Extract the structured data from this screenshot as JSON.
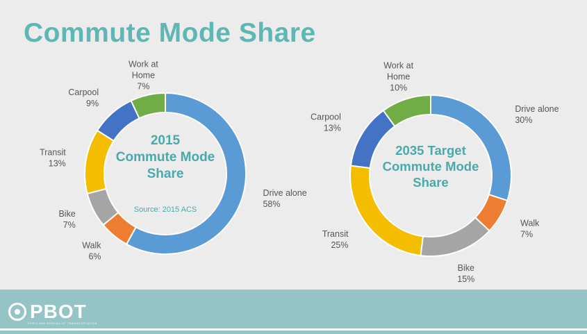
{
  "slide": {
    "title": "Commute Mode Share"
  },
  "footer": {
    "logo_text": "PBOT",
    "logo_subtext": "PORTLAND BUREAU OF TRANSPORTATION"
  },
  "chart_data": [
    {
      "type": "pie",
      "variant": "donut",
      "title_lines": [
        "2015",
        "Commute Mode",
        "Share"
      ],
      "source": "Source: 2015 ACS",
      "slices": [
        {
          "label": "Drive alone",
          "value": 58,
          "value_label": "58%",
          "color": "#5b9bd5"
        },
        {
          "label": "Walk",
          "value": 6,
          "value_label": "6%",
          "color": "#ed7d31"
        },
        {
          "label": "Bike",
          "value": 7,
          "value_label": "7%",
          "color": "#a5a5a5"
        },
        {
          "label": "Transit",
          "value": 13,
          "value_label": "13%",
          "color": "#f5bd00"
        },
        {
          "label": "Carpool",
          "value": 9,
          "value_label": "9%",
          "color": "#4472c4"
        },
        {
          "label": "Work at Home",
          "value": 7,
          "value_label": "7%",
          "color": "#70ad47"
        }
      ]
    },
    {
      "type": "pie",
      "variant": "donut",
      "title_lines": [
        "2035 Target",
        "Commute Mode",
        "Share"
      ],
      "slices": [
        {
          "label": "Drive alone",
          "value": 30,
          "value_label": "30%",
          "color": "#5b9bd5"
        },
        {
          "label": "Walk",
          "value": 7,
          "value_label": "7%",
          "color": "#ed7d31"
        },
        {
          "label": "Bike",
          "value": 15,
          "value_label": "15%",
          "color": "#a5a5a5"
        },
        {
          "label": "Transit",
          "value": 25,
          "value_label": "25%",
          "color": "#f5bd00"
        },
        {
          "label": "Carpool",
          "value": 13,
          "value_label": "13%",
          "color": "#4472c4"
        },
        {
          "label": "Work at Home",
          "value": 10,
          "value_label": "10%",
          "color": "#70ad47"
        }
      ]
    }
  ]
}
